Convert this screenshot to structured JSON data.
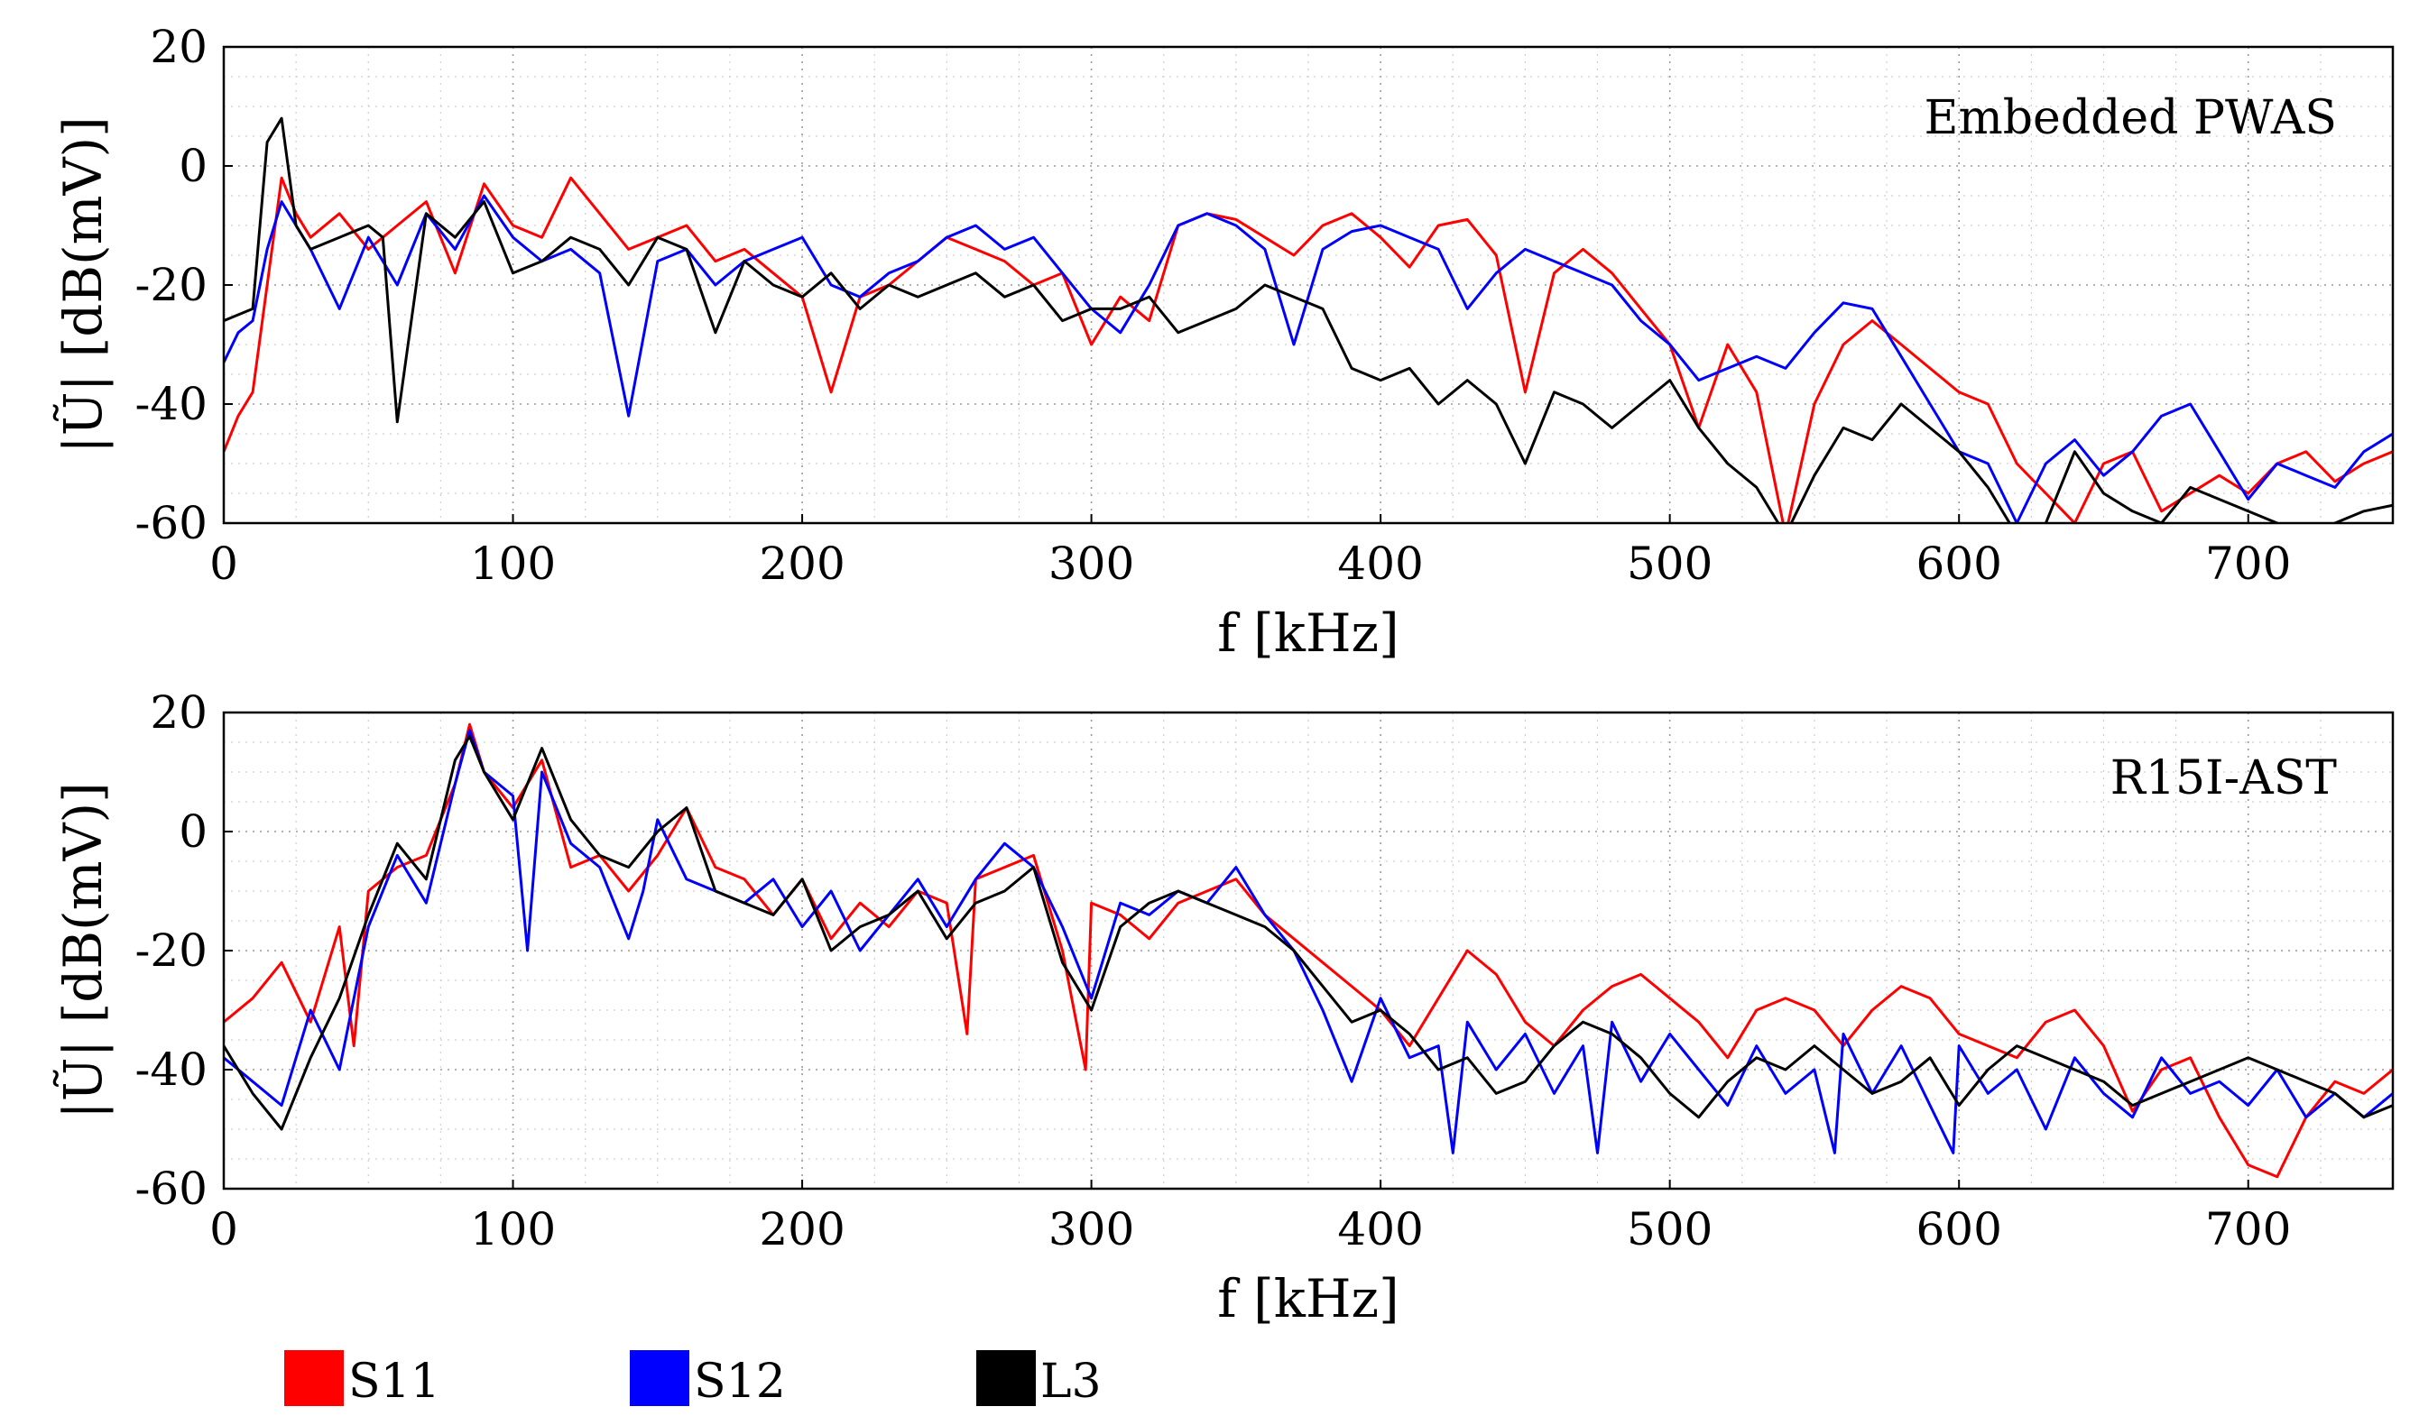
{
  "chart_data": [
    {
      "type": "line",
      "annotation": "Embedded PWAS",
      "xlabel": "f [kHz]",
      "ylabel": "|Ũ| [dB(mV)]",
      "xlim": [
        0,
        750
      ],
      "ylim": [
        -60,
        20
      ],
      "xticks": [
        0,
        100,
        200,
        300,
        400,
        500,
        600,
        700
      ],
      "yticks": [
        20,
        0,
        -20,
        -40,
        -60
      ],
      "grid": "dotted",
      "series": [
        {
          "name": "S11",
          "color": "#ff0000",
          "x": [
            0,
            5,
            10,
            15,
            20,
            25,
            30,
            40,
            50,
            60,
            70,
            80,
            90,
            100,
            110,
            120,
            130,
            140,
            150,
            160,
            170,
            180,
            190,
            200,
            210,
            220,
            230,
            240,
            250,
            260,
            270,
            280,
            290,
            300,
            310,
            320,
            330,
            340,
            350,
            360,
            370,
            380,
            390,
            400,
            410,
            420,
            430,
            440,
            450,
            460,
            470,
            480,
            490,
            500,
            510,
            520,
            530,
            540,
            550,
            560,
            570,
            580,
            590,
            600,
            610,
            620,
            630,
            640,
            650,
            660,
            670,
            680,
            690,
            700,
            710,
            720,
            730,
            740,
            750
          ],
          "y": [
            -48,
            -42,
            -38,
            -20,
            -2,
            -8,
            -12,
            -8,
            -14,
            -10,
            -6,
            -18,
            -3,
            -10,
            -12,
            -2,
            -8,
            -14,
            -12,
            -10,
            -16,
            -14,
            -18,
            -22,
            -38,
            -22,
            -20,
            -16,
            -12,
            -14,
            -16,
            -20,
            -18,
            -30,
            -22,
            -26,
            -10,
            -8,
            -9,
            -12,
            -15,
            -10,
            -8,
            -12,
            -17,
            -10,
            -9,
            -15,
            -38,
            -18,
            -14,
            -18,
            -24,
            -30,
            -44,
            -30,
            -38,
            -62,
            -40,
            -30,
            -26,
            -30,
            -34,
            -38,
            -40,
            -50,
            -55,
            -60,
            -50,
            -48,
            -58,
            -55,
            -52,
            -55,
            -50,
            -48,
            -53,
            -50,
            -48
          ]
        },
        {
          "name": "S12",
          "color": "#0000ff",
          "x": [
            0,
            5,
            10,
            15,
            20,
            25,
            30,
            40,
            50,
            60,
            70,
            80,
            90,
            100,
            110,
            120,
            130,
            140,
            150,
            160,
            170,
            180,
            190,
            200,
            210,
            220,
            230,
            240,
            250,
            260,
            270,
            280,
            290,
            300,
            310,
            320,
            330,
            340,
            350,
            360,
            370,
            380,
            390,
            400,
            410,
            420,
            430,
            440,
            450,
            460,
            470,
            480,
            490,
            500,
            510,
            520,
            530,
            540,
            550,
            560,
            570,
            580,
            590,
            600,
            610,
            620,
            630,
            640,
            650,
            660,
            670,
            680,
            690,
            700,
            710,
            720,
            730,
            740,
            750
          ],
          "y": [
            -33,
            -28,
            -26,
            -14,
            -6,
            -10,
            -14,
            -24,
            -12,
            -20,
            -8,
            -14,
            -5,
            -12,
            -16,
            -14,
            -18,
            -42,
            -16,
            -14,
            -20,
            -16,
            -14,
            -12,
            -20,
            -22,
            -18,
            -16,
            -12,
            -10,
            -14,
            -12,
            -18,
            -24,
            -28,
            -20,
            -10,
            -8,
            -10,
            -14,
            -30,
            -14,
            -11,
            -10,
            -12,
            -14,
            -24,
            -18,
            -14,
            -16,
            -18,
            -20,
            -26,
            -30,
            -36,
            -34,
            -32,
            -34,
            -28,
            -23,
            -24,
            -32,
            -40,
            -48,
            -50,
            -60,
            -50,
            -46,
            -52,
            -48,
            -42,
            -40,
            -48,
            -56,
            -50,
            -52,
            -54,
            -48,
            -45
          ]
        },
        {
          "name": "L3",
          "color": "#000000",
          "x": [
            0,
            5,
            10,
            15,
            20,
            25,
            30,
            40,
            50,
            55,
            60,
            70,
            80,
            90,
            100,
            110,
            120,
            130,
            140,
            150,
            160,
            170,
            180,
            190,
            200,
            210,
            220,
            230,
            240,
            250,
            260,
            270,
            280,
            290,
            300,
            310,
            320,
            330,
            340,
            350,
            360,
            370,
            380,
            390,
            400,
            410,
            420,
            430,
            440,
            450,
            460,
            470,
            480,
            490,
            500,
            510,
            520,
            530,
            540,
            550,
            560,
            570,
            580,
            590,
            600,
            610,
            620,
            630,
            640,
            650,
            660,
            670,
            680,
            690,
            700,
            710,
            720,
            730,
            740,
            750
          ],
          "y": [
            -26,
            -25,
            -24,
            4,
            8,
            -10,
            -14,
            -12,
            -10,
            -12,
            -43,
            -8,
            -12,
            -6,
            -18,
            -16,
            -12,
            -14,
            -20,
            -12,
            -14,
            -28,
            -16,
            -20,
            -22,
            -18,
            -24,
            -20,
            -22,
            -20,
            -18,
            -22,
            -20,
            -26,
            -24,
            -24,
            -22,
            -28,
            -26,
            -24,
            -20,
            -22,
            -24,
            -34,
            -36,
            -34,
            -40,
            -36,
            -40,
            -50,
            -38,
            -40,
            -44,
            -40,
            -36,
            -44,
            -50,
            -54,
            -62,
            -52,
            -44,
            -46,
            -40,
            -44,
            -48,
            -54,
            -62,
            -60,
            -48,
            -55,
            -58,
            -60,
            -54,
            -56,
            -58,
            -60,
            -62,
            -60,
            -58,
            -57
          ]
        }
      ]
    },
    {
      "type": "line",
      "annotation": "R15I-AST",
      "xlabel": "f [kHz]",
      "ylabel": "|Ũ| [dB(mV)]",
      "xlim": [
        0,
        750
      ],
      "ylim": [
        -60,
        20
      ],
      "xticks": [
        0,
        100,
        200,
        300,
        400,
        500,
        600,
        700
      ],
      "yticks": [
        20,
        0,
        -20,
        -40,
        -60
      ],
      "grid": "dotted",
      "series": [
        {
          "name": "S11",
          "color": "#ff0000",
          "x": [
            0,
            10,
            20,
            30,
            40,
            45,
            50,
            60,
            70,
            80,
            85,
            90,
            100,
            110,
            120,
            130,
            140,
            150,
            160,
            170,
            180,
            190,
            200,
            210,
            220,
            230,
            240,
            250,
            257,
            260,
            270,
            280,
            290,
            298,
            300,
            310,
            320,
            330,
            340,
            350,
            360,
            370,
            380,
            390,
            400,
            410,
            420,
            430,
            440,
            450,
            460,
            470,
            480,
            490,
            500,
            510,
            520,
            530,
            540,
            550,
            560,
            570,
            580,
            590,
            600,
            610,
            620,
            630,
            640,
            650,
            660,
            670,
            680,
            690,
            700,
            710,
            720,
            730,
            740,
            750
          ],
          "y": [
            -32,
            -28,
            -22,
            -32,
            -16,
            -36,
            -10,
            -6,
            -4,
            8,
            18,
            10,
            4,
            12,
            -6,
            -4,
            -10,
            -4,
            4,
            -6,
            -8,
            -14,
            -8,
            -18,
            -12,
            -16,
            -10,
            -12,
            -34,
            -8,
            -6,
            -4,
            -20,
            -40,
            -12,
            -14,
            -18,
            -12,
            -10,
            -8,
            -14,
            -18,
            -22,
            -26,
            -30,
            -36,
            -28,
            -20,
            -24,
            -32,
            -36,
            -30,
            -26,
            -24,
            -28,
            -32,
            -38,
            -30,
            -28,
            -30,
            -36,
            -30,
            -26,
            -28,
            -34,
            -36,
            -38,
            -32,
            -30,
            -36,
            -47,
            -40,
            -38,
            -48,
            -56,
            -58,
            -48,
            -42,
            -44,
            -40
          ]
        },
        {
          "name": "S12",
          "color": "#0000ff",
          "x": [
            0,
            10,
            20,
            30,
            40,
            50,
            60,
            70,
            80,
            85,
            90,
            100,
            105,
            110,
            120,
            130,
            140,
            145,
            150,
            160,
            170,
            180,
            190,
            200,
            210,
            220,
            230,
            240,
            250,
            260,
            270,
            280,
            290,
            300,
            310,
            320,
            330,
            340,
            350,
            360,
            370,
            380,
            390,
            400,
            410,
            420,
            425,
            430,
            440,
            450,
            460,
            470,
            475,
            480,
            490,
            500,
            510,
            520,
            530,
            540,
            550,
            557,
            560,
            570,
            580,
            590,
            598,
            600,
            610,
            620,
            630,
            640,
            650,
            660,
            670,
            680,
            690,
            700,
            710,
            720,
            730,
            740,
            750
          ],
          "y": [
            -38,
            -42,
            -46,
            -30,
            -40,
            -16,
            -4,
            -12,
            8,
            17,
            10,
            6,
            -20,
            10,
            -2,
            -6,
            -18,
            -10,
            2,
            -8,
            -10,
            -12,
            -8,
            -16,
            -10,
            -20,
            -14,
            -8,
            -16,
            -8,
            -2,
            -6,
            -16,
            -28,
            -12,
            -14,
            -10,
            -12,
            -6,
            -14,
            -20,
            -30,
            -42,
            -28,
            -38,
            -36,
            -54,
            -32,
            -40,
            -34,
            -44,
            -36,
            -54,
            -32,
            -42,
            -34,
            -40,
            -46,
            -36,
            -44,
            -40,
            -54,
            -34,
            -44,
            -36,
            -46,
            -54,
            -36,
            -44,
            -40,
            -50,
            -38,
            -44,
            -48,
            -38,
            -44,
            -42,
            -46,
            -40,
            -48,
            -44,
            -48,
            -44
          ]
        },
        {
          "name": "L3",
          "color": "#000000",
          "x": [
            0,
            10,
            20,
            30,
            40,
            50,
            60,
            70,
            80,
            85,
            90,
            100,
            110,
            120,
            130,
            140,
            150,
            160,
            170,
            180,
            190,
            200,
            210,
            220,
            230,
            240,
            250,
            260,
            270,
            280,
            290,
            300,
            310,
            320,
            330,
            340,
            350,
            360,
            370,
            380,
            390,
            400,
            410,
            420,
            430,
            440,
            450,
            460,
            470,
            480,
            490,
            500,
            510,
            520,
            530,
            540,
            550,
            560,
            570,
            580,
            590,
            600,
            610,
            620,
            630,
            640,
            650,
            660,
            670,
            680,
            690,
            700,
            710,
            720,
            730,
            740,
            750
          ],
          "y": [
            -36,
            -44,
            -50,
            -38,
            -28,
            -14,
            -2,
            -8,
            12,
            16,
            10,
            2,
            14,
            2,
            -4,
            -6,
            0,
            4,
            -10,
            -12,
            -14,
            -8,
            -20,
            -16,
            -14,
            -10,
            -18,
            -12,
            -10,
            -6,
            -22,
            -30,
            -16,
            -12,
            -10,
            -12,
            -14,
            -16,
            -20,
            -26,
            -32,
            -30,
            -34,
            -40,
            -38,
            -44,
            -42,
            -36,
            -32,
            -34,
            -38,
            -44,
            -48,
            -42,
            -38,
            -40,
            -36,
            -40,
            -44,
            -42,
            -38,
            -46,
            -40,
            -36,
            -38,
            -40,
            -42,
            -46,
            -44,
            -42,
            -40,
            -38,
            -40,
            -42,
            -44,
            -48,
            -46
          ]
        }
      ]
    }
  ],
  "legend": [
    {
      "label": "S11",
      "color": "#ff0000"
    },
    {
      "label": "S12",
      "color": "#0000ff"
    },
    {
      "label": "L3",
      "color": "#000000"
    }
  ]
}
